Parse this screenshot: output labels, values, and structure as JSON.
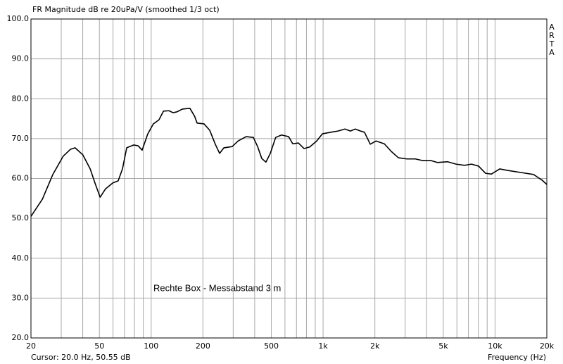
{
  "chart_data": {
    "type": "line",
    "title": "FR Magnitude dB re 20uPa/V (smoothed 1/3 oct)",
    "side_label": "ARTA",
    "x_label": "Frequency (Hz)",
    "status": "Cursor: 20.0 Hz, 50.55 dB",
    "annotation": "Rechte Box - Messabstand 3 m",
    "x_scale": "log",
    "grid": true,
    "xlim": [
      20,
      20000
    ],
    "ylim": [
      20,
      100
    ],
    "xticks": [
      20,
      50,
      100,
      200,
      500,
      {
        "value": 1000,
        "label": "1k"
      },
      {
        "value": 2000,
        "label": "2k"
      },
      {
        "value": 5000,
        "label": "5k"
      },
      {
        "value": 10000,
        "label": "10k"
      },
      {
        "value": 20000,
        "label": "20k"
      }
    ],
    "xminor_ticks": [
      30,
      40,
      60,
      70,
      80,
      90,
      300,
      400,
      600,
      700,
      800,
      900,
      3000,
      4000,
      6000,
      7000,
      8000,
      9000
    ],
    "yticks": [
      {
        "value": 20,
        "label": "20.0"
      },
      {
        "value": 30,
        "label": "30.0"
      },
      {
        "value": 40,
        "label": "40.0"
      },
      {
        "value": 50,
        "label": "50.0"
      },
      {
        "value": 60,
        "label": "60.0"
      },
      {
        "value": 70,
        "label": "70.0"
      },
      {
        "value": 80,
        "label": "80.0"
      },
      {
        "value": 90,
        "label": "90.0"
      },
      {
        "value": 100,
        "label": "100.0"
      }
    ],
    "x": [
      20,
      23.3,
      26.8,
      30.8,
      33.9,
      36.1,
      40.1,
      44.2,
      47.1,
      50.5,
      54.3,
      59.9,
      64.3,
      68.1,
      72.1,
      79.2,
      84,
      88.6,
      95.6,
      103,
      111,
      118,
      127,
      134,
      141,
      152,
      168,
      179,
      185,
      203,
      219,
      236,
      250,
      265,
      296,
      320,
      357,
      393,
      416,
      440,
      465,
      493,
      530,
      573,
      630,
      666,
      718,
      775,
      836,
      918,
      990,
      1110,
      1220,
      1340,
      1440,
      1540,
      1650,
      1740,
      1880,
      2030,
      2270,
      2490,
      2740,
      3070,
      3440,
      3780,
      4230,
      4640,
      5300,
      5930,
      6640,
      7300,
      8020,
      8810,
      9510,
      10640,
      11920,
      14130,
      16740,
      18750,
      20000
    ],
    "series": [
      {
        "name": "FR",
        "color": "#000000",
        "values": [
          50.5,
          54.8,
          61,
          65.6,
          67.3,
          67.7,
          65.9,
          62.4,
          58.9,
          55.3,
          57.4,
          58.9,
          59.4,
          62.4,
          67.7,
          68.4,
          68.2,
          67.1,
          71.2,
          73.7,
          74.7,
          76.9,
          77,
          76.5,
          76.7,
          77.4,
          77.6,
          75.6,
          73.9,
          73.7,
          72.1,
          68.6,
          66.3,
          67.7,
          68,
          69.4,
          70.5,
          70.3,
          68,
          65,
          64.1,
          66.3,
          70.3,
          70.9,
          70.5,
          68.7,
          68.9,
          67.5,
          67.9,
          69.4,
          71.2,
          71.6,
          71.9,
          72.4,
          71.9,
          72.4,
          71.9,
          71.6,
          68.6,
          69.4,
          68.7,
          66.8,
          65.2,
          64.9,
          64.9,
          64.5,
          64.5,
          64,
          64.2,
          63.6,
          63.3,
          63.6,
          63.1,
          61.3,
          61.1,
          62.4,
          62,
          61.5,
          61,
          59.6,
          58.5
        ]
      }
    ]
  }
}
